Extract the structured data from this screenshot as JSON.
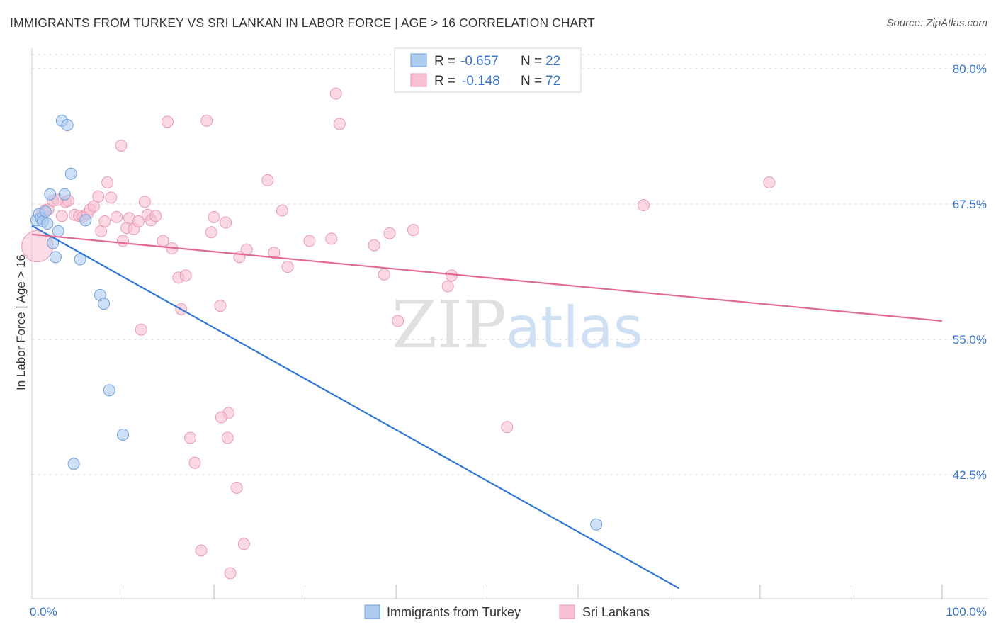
{
  "title": "IMMIGRANTS FROM TURKEY VS SRI LANKAN IN LABOR FORCE | AGE > 16 CORRELATION CHART",
  "source": "Source: ZipAtlas.com",
  "watermark": {
    "zip": "ZIP",
    "atlas": "atlas"
  },
  "colors": {
    "blue_fill": "#aecbf0",
    "blue_stroke": "#6f9fdc",
    "blue_line": "#2f78d6",
    "pink_fill": "#f7bfd1",
    "pink_stroke": "#e99ab5",
    "pink_line": "#e06a96",
    "axis_text": "#3a74c8",
    "grid": "#dddddd"
  },
  "legend": {
    "r_label": "R =",
    "n_label": "N =",
    "rows": [
      {
        "r": "-0.657",
        "n": "22"
      },
      {
        "r": "-0.148",
        "n": "72"
      }
    ]
  },
  "chart_data": {
    "type": "scatter",
    "xlabel": "",
    "ylabel": "In Labor Force | Age > 16",
    "xlim": [
      0,
      100
    ],
    "ylim": [
      32.0,
      82.0
    ],
    "x_tick_labels": [
      "0.0%",
      "100.0%"
    ],
    "y_ticks": [
      42.5,
      55.0,
      67.5,
      80.0
    ],
    "y_tick_labels": [
      "42.5%",
      "55.0%",
      "67.5%",
      "80.0%"
    ],
    "grid": true,
    "series": [
      {
        "name": "Immigrants from Turkey",
        "color": "blue",
        "points": [
          [
            0.5,
            66.0
          ],
          [
            0.8,
            66.6
          ],
          [
            1.0,
            66.2
          ],
          [
            1.2,
            65.9
          ],
          [
            1.5,
            66.8
          ],
          [
            1.7,
            65.7
          ],
          [
            2.0,
            68.4
          ],
          [
            2.3,
            63.9
          ],
          [
            2.6,
            62.6
          ],
          [
            2.9,
            65.0
          ],
          [
            3.3,
            75.2
          ],
          [
            3.6,
            68.4
          ],
          [
            3.9,
            74.8
          ],
          [
            4.3,
            70.3
          ],
          [
            4.6,
            43.5
          ],
          [
            5.3,
            62.4
          ],
          [
            5.9,
            66.0
          ],
          [
            7.5,
            59.1
          ],
          [
            7.9,
            58.3
          ],
          [
            8.5,
            50.3
          ],
          [
            10.0,
            46.2
          ],
          [
            62.0,
            37.9
          ]
        ],
        "trend": {
          "x0": 0,
          "y0": 65.5,
          "x1": 71.1,
          "y1": 32.0
        }
      },
      {
        "name": "Sri Lankans",
        "color": "pink",
        "points": [
          [
            0.6,
            63.6
          ],
          [
            1.1,
            66.6
          ],
          [
            1.4,
            66.9
          ],
          [
            1.8,
            67.0
          ],
          [
            2.3,
            67.8
          ],
          [
            2.8,
            67.9
          ],
          [
            3.3,
            66.4
          ],
          [
            3.7,
            67.7
          ],
          [
            4.0,
            67.8
          ],
          [
            4.7,
            66.5
          ],
          [
            5.2,
            66.4
          ],
          [
            5.6,
            66.3
          ],
          [
            6.1,
            66.6
          ],
          [
            6.4,
            67.0
          ],
          [
            6.8,
            67.3
          ],
          [
            7.3,
            68.2
          ],
          [
            7.6,
            65.0
          ],
          [
            8.0,
            65.9
          ],
          [
            8.3,
            69.5
          ],
          [
            8.7,
            68.1
          ],
          [
            9.3,
            66.3
          ],
          [
            9.8,
            72.9
          ],
          [
            10.0,
            64.1
          ],
          [
            10.4,
            65.3
          ],
          [
            10.7,
            66.2
          ],
          [
            11.2,
            65.2
          ],
          [
            11.7,
            65.9
          ],
          [
            12.0,
            55.9
          ],
          [
            12.4,
            67.7
          ],
          [
            12.7,
            66.5
          ],
          [
            13.1,
            66.0
          ],
          [
            13.6,
            66.4
          ],
          [
            14.4,
            64.1
          ],
          [
            14.9,
            75.1
          ],
          [
            15.4,
            63.4
          ],
          [
            16.1,
            60.7
          ],
          [
            16.4,
            57.8
          ],
          [
            16.9,
            60.9
          ],
          [
            17.4,
            45.9
          ],
          [
            17.9,
            43.6
          ],
          [
            19.2,
            75.2
          ],
          [
            19.7,
            64.9
          ],
          [
            20.0,
            66.3
          ],
          [
            20.7,
            58.1
          ],
          [
            21.3,
            65.8
          ],
          [
            21.5,
            45.9
          ],
          [
            22.8,
            62.6
          ],
          [
            23.3,
            36.1
          ],
          [
            23.6,
            63.3
          ],
          [
            25.9,
            69.7
          ],
          [
            26.6,
            63.0
          ],
          [
            27.5,
            66.9
          ],
          [
            28.1,
            61.7
          ],
          [
            30.5,
            64.1
          ],
          [
            32.9,
            64.3
          ],
          [
            33.4,
            77.7
          ],
          [
            33.8,
            74.9
          ],
          [
            37.6,
            63.7
          ],
          [
            38.7,
            61.0
          ],
          [
            39.3,
            64.8
          ],
          [
            40.2,
            56.7
          ],
          [
            41.9,
            65.1
          ],
          [
            45.7,
            59.9
          ],
          [
            46.1,
            60.9
          ],
          [
            52.2,
            46.9
          ],
          [
            67.2,
            67.4
          ],
          [
            81.0,
            69.5
          ],
          [
            21.6,
            48.2
          ],
          [
            22.5,
            41.3
          ],
          [
            21.8,
            33.4
          ],
          [
            20.8,
            47.8
          ],
          [
            18.6,
            35.5
          ]
        ],
        "trend": {
          "x0": 0,
          "y0": 64.7,
          "x1": 100,
          "y1": 56.7
        }
      }
    ]
  },
  "bottom_legend": [
    "Immigrants from Turkey",
    "Sri Lankans"
  ]
}
